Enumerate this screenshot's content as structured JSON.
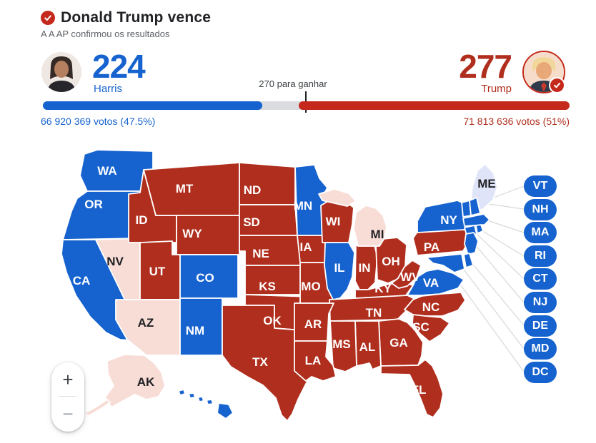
{
  "header": {
    "title": "Donald Trump vence",
    "subtitle": "A A AP confirmou os resultados",
    "check_icon": "checkmark"
  },
  "candidates": {
    "harris": {
      "name": "Harris",
      "electoral_votes": 224,
      "votes_label": "66 920 369 votos (47.5%)"
    },
    "trump": {
      "name": "Trump",
      "electoral_votes": 277,
      "votes_label": "71 813 636 votos (51%)",
      "confirmed": true
    }
  },
  "bar": {
    "threshold": 270,
    "threshold_label": "270 para ganhar",
    "total_electoral_votes": 538
  },
  "colors": {
    "dem": "#1663CF",
    "rep": "#B02E1D",
    "rep_lead": "#F8DCD6",
    "dem_lead": "#DFE4F8",
    "bar_rep": "#C5291B",
    "bar_track": "#DADCE0"
  },
  "map": {
    "states": [
      {
        "abbr": "WA",
        "result": "dem"
      },
      {
        "abbr": "OR",
        "result": "dem"
      },
      {
        "abbr": "CA",
        "result": "dem"
      },
      {
        "abbr": "NV",
        "result": "rep_lead"
      },
      {
        "abbr": "ID",
        "result": "rep"
      },
      {
        "abbr": "MT",
        "result": "rep"
      },
      {
        "abbr": "WY",
        "result": "rep"
      },
      {
        "abbr": "UT",
        "result": "rep"
      },
      {
        "abbr": "CO",
        "result": "dem"
      },
      {
        "abbr": "AZ",
        "result": "rep_lead"
      },
      {
        "abbr": "NM",
        "result": "dem"
      },
      {
        "abbr": "ND",
        "result": "rep"
      },
      {
        "abbr": "SD",
        "result": "rep"
      },
      {
        "abbr": "NE",
        "result": "rep"
      },
      {
        "abbr": "KS",
        "result": "rep"
      },
      {
        "abbr": "OK",
        "result": "rep"
      },
      {
        "abbr": "TX",
        "result": "rep"
      },
      {
        "abbr": "MN",
        "result": "dem"
      },
      {
        "abbr": "IA",
        "result": "rep"
      },
      {
        "abbr": "MO",
        "result": "rep"
      },
      {
        "abbr": "WI",
        "result": "rep"
      },
      {
        "abbr": "IL",
        "result": "dem"
      },
      {
        "abbr": "IN",
        "result": "rep"
      },
      {
        "abbr": "OH",
        "result": "rep"
      },
      {
        "abbr": "MI",
        "result": "rep_lead"
      },
      {
        "abbr": "KY",
        "result": "rep"
      },
      {
        "abbr": "TN",
        "result": "rep"
      },
      {
        "abbr": "WV",
        "result": "rep"
      },
      {
        "abbr": "VA",
        "result": "dem"
      },
      {
        "abbr": "NC",
        "result": "rep"
      },
      {
        "abbr": "SC",
        "result": "rep"
      },
      {
        "abbr": "GA",
        "result": "rep"
      },
      {
        "abbr": "AL",
        "result": "rep"
      },
      {
        "abbr": "MS",
        "result": "rep"
      },
      {
        "abbr": "FL",
        "result": "rep"
      },
      {
        "abbr": "PA",
        "result": "rep"
      },
      {
        "abbr": "NY",
        "result": "dem"
      },
      {
        "abbr": "ME",
        "result": "dem_lead"
      },
      {
        "abbr": "VT",
        "result": "dem"
      },
      {
        "abbr": "NH",
        "result": "dem"
      },
      {
        "abbr": "MA",
        "result": "dem"
      },
      {
        "abbr": "CT",
        "result": "dem"
      },
      {
        "abbr": "RI",
        "result": "dem"
      },
      {
        "abbr": "NJ",
        "result": "dem"
      },
      {
        "abbr": "DE",
        "result": "dem"
      },
      {
        "abbr": "MD",
        "result": "dem"
      },
      {
        "abbr": "AK",
        "result": "rep_lead"
      },
      {
        "abbr": "HI",
        "result": "dem"
      }
    ]
  },
  "callout_pills": [
    {
      "abbr": "VT",
      "result": "dem"
    },
    {
      "abbr": "NH",
      "result": "dem"
    },
    {
      "abbr": "MA",
      "result": "dem"
    },
    {
      "abbr": "RI",
      "result": "dem"
    },
    {
      "abbr": "CT",
      "result": "dem"
    },
    {
      "abbr": "NJ",
      "result": "dem"
    },
    {
      "abbr": "DE",
      "result": "dem"
    },
    {
      "abbr": "MD",
      "result": "dem"
    },
    {
      "abbr": "DC",
      "result": "dem"
    }
  ],
  "zoom_control": {
    "zoom_in": "+",
    "zoom_out": "−"
  }
}
